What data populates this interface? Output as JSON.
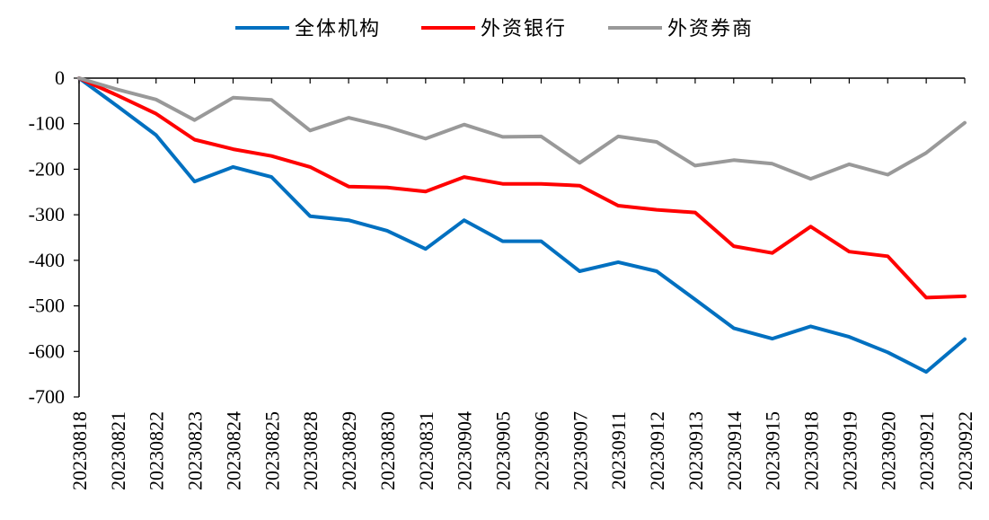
{
  "chart_data": {
    "type": "line",
    "title": "",
    "xlabel": "",
    "ylabel": "",
    "ylim": [
      -700,
      0
    ],
    "yticks": [
      0,
      -100,
      -200,
      -300,
      -400,
      -500,
      -600,
      -700
    ],
    "grid": false,
    "legend_position": "top",
    "x": [
      "20230818",
      "20230821",
      "20230822",
      "20230823",
      "20230824",
      "20230825",
      "20230828",
      "20230829",
      "20230830",
      "20230831",
      "20230904",
      "20230905",
      "20230906",
      "20230907",
      "20230911",
      "20230912",
      "20230913",
      "20230914",
      "20230915",
      "20230918",
      "20230919",
      "20230920",
      "20230921",
      "20230922"
    ],
    "series": [
      {
        "name": "全体机构",
        "color": "#0070C0",
        "values": [
          0,
          -62,
          -125,
          -227,
          -195,
          -217,
          -303,
          -312,
          -335,
          -375,
          -312,
          -358,
          -358,
          -424,
          -404,
          -424,
          -486,
          -549,
          -572,
          -545,
          -568,
          -602,
          -645,
          -573
        ]
      },
      {
        "name": "外资银行",
        "color": "#FF0000",
        "values": [
          0,
          -38,
          -78,
          -135,
          -156,
          -171,
          -195,
          -238,
          -240,
          -249,
          -217,
          -232,
          -232,
          -236,
          -280,
          -289,
          -295,
          -369,
          -384,
          -326,
          -381,
          -391,
          -482,
          -479
        ]
      },
      {
        "name": "外资券商",
        "color": "#999999",
        "values": [
          0,
          -25,
          -47,
          -92,
          -43,
          -48,
          -115,
          -87,
          -107,
          -133,
          -102,
          -129,
          -128,
          -186,
          -128,
          -140,
          -192,
          -180,
          -188,
          -221,
          -189,
          -212,
          -164,
          -98
        ]
      }
    ]
  }
}
